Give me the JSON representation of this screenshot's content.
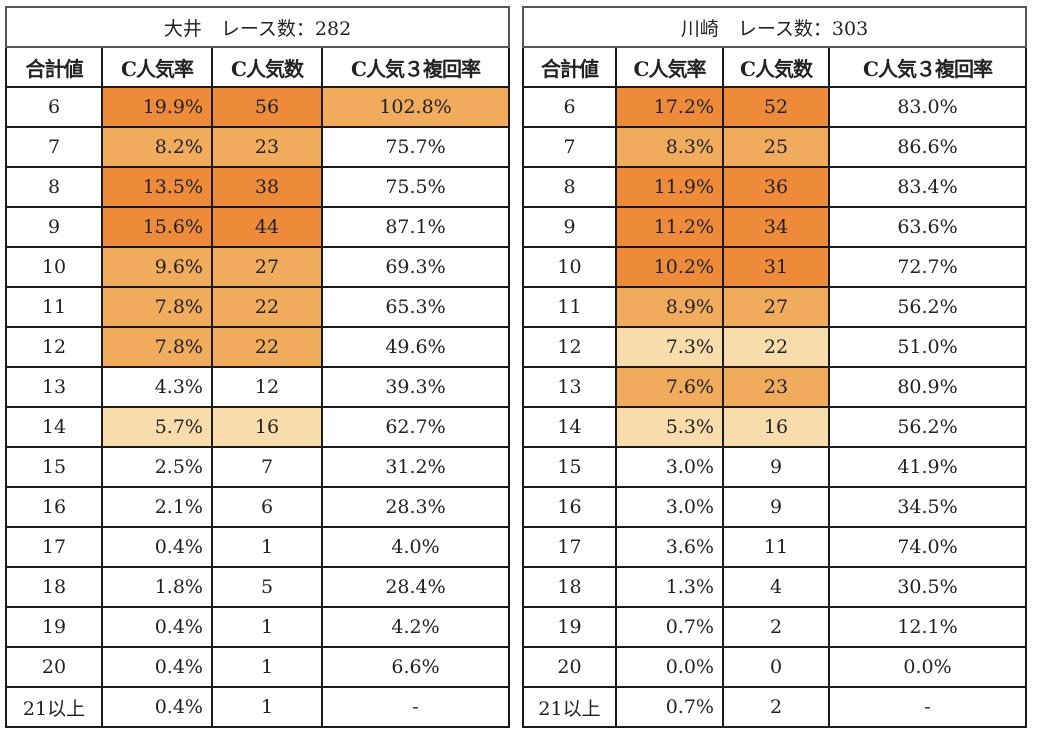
{
  "colors": {
    "dark": "#ED8B3A",
    "mid": "#F0AC5C",
    "light": "#F8DCAC"
  },
  "left": {
    "title": "大井　レース数：282",
    "headers": [
      "合計値",
      "C人気率",
      "C人気数",
      "C人気３複回率"
    ],
    "rows": [
      {
        "total": "6",
        "rate": "19.9%",
        "count": "56",
        "return": "102.8%",
        "shade": "dark",
        "ret_shade": "mid"
      },
      {
        "total": "7",
        "rate": "8.2%",
        "count": "23",
        "return": "75.7%",
        "shade": "mid",
        "ret_shade": ""
      },
      {
        "total": "8",
        "rate": "13.5%",
        "count": "38",
        "return": "75.5%",
        "shade": "dark",
        "ret_shade": ""
      },
      {
        "total": "9",
        "rate": "15.6%",
        "count": "44",
        "return": "87.1%",
        "shade": "dark",
        "ret_shade": ""
      },
      {
        "total": "10",
        "rate": "9.6%",
        "count": "27",
        "return": "69.3%",
        "shade": "mid",
        "ret_shade": ""
      },
      {
        "total": "11",
        "rate": "7.8%",
        "count": "22",
        "return": "65.3%",
        "shade": "mid",
        "ret_shade": ""
      },
      {
        "total": "12",
        "rate": "7.8%",
        "count": "22",
        "return": "49.6%",
        "shade": "mid",
        "ret_shade": ""
      },
      {
        "total": "13",
        "rate": "4.3%",
        "count": "12",
        "return": "39.3%",
        "shade": "",
        "ret_shade": ""
      },
      {
        "total": "14",
        "rate": "5.7%",
        "count": "16",
        "return": "62.7%",
        "shade": "light",
        "ret_shade": ""
      },
      {
        "total": "15",
        "rate": "2.5%",
        "count": "7",
        "return": "31.2%",
        "shade": "",
        "ret_shade": ""
      },
      {
        "total": "16",
        "rate": "2.1%",
        "count": "6",
        "return": "28.3%",
        "shade": "",
        "ret_shade": ""
      },
      {
        "total": "17",
        "rate": "0.4%",
        "count": "1",
        "return": "4.0%",
        "shade": "",
        "ret_shade": ""
      },
      {
        "total": "18",
        "rate": "1.8%",
        "count": "5",
        "return": "28.4%",
        "shade": "",
        "ret_shade": ""
      },
      {
        "total": "19",
        "rate": "0.4%",
        "count": "1",
        "return": "4.2%",
        "shade": "",
        "ret_shade": ""
      },
      {
        "total": "20",
        "rate": "0.4%",
        "count": "1",
        "return": "6.6%",
        "shade": "",
        "ret_shade": ""
      },
      {
        "total": "21以上",
        "rate": "0.4%",
        "count": "1",
        "return": "-",
        "shade": "",
        "ret_shade": ""
      }
    ]
  },
  "right": {
    "title": "川崎　レース数：303",
    "headers": [
      "合計値",
      "C人気率",
      "C人気数",
      "C人気３複回率"
    ],
    "rows": [
      {
        "total": "6",
        "rate": "17.2%",
        "count": "52",
        "return": "83.0%",
        "shade": "dark",
        "ret_shade": ""
      },
      {
        "total": "7",
        "rate": "8.3%",
        "count": "25",
        "return": "86.6%",
        "shade": "mid",
        "ret_shade": ""
      },
      {
        "total": "8",
        "rate": "11.9%",
        "count": "36",
        "return": "83.4%",
        "shade": "dark",
        "ret_shade": ""
      },
      {
        "total": "9",
        "rate": "11.2%",
        "count": "34",
        "return": "63.6%",
        "shade": "dark",
        "ret_shade": ""
      },
      {
        "total": "10",
        "rate": "10.2%",
        "count": "31",
        "return": "72.7%",
        "shade": "dark",
        "ret_shade": ""
      },
      {
        "total": "11",
        "rate": "8.9%",
        "count": "27",
        "return": "56.2%",
        "shade": "mid",
        "ret_shade": ""
      },
      {
        "total": "12",
        "rate": "7.3%",
        "count": "22",
        "return": "51.0%",
        "shade": "light",
        "ret_shade": ""
      },
      {
        "total": "13",
        "rate": "7.6%",
        "count": "23",
        "return": "80.9%",
        "shade": "mid",
        "ret_shade": ""
      },
      {
        "total": "14",
        "rate": "5.3%",
        "count": "16",
        "return": "56.2%",
        "shade": "light",
        "ret_shade": ""
      },
      {
        "total": "15",
        "rate": "3.0%",
        "count": "9",
        "return": "41.9%",
        "shade": "",
        "ret_shade": ""
      },
      {
        "total": "16",
        "rate": "3.0%",
        "count": "9",
        "return": "34.5%",
        "shade": "",
        "ret_shade": ""
      },
      {
        "total": "17",
        "rate": "3.6%",
        "count": "11",
        "return": "74.0%",
        "shade": "",
        "ret_shade": ""
      },
      {
        "total": "18",
        "rate": "1.3%",
        "count": "4",
        "return": "30.5%",
        "shade": "",
        "ret_shade": ""
      },
      {
        "total": "19",
        "rate": "0.7%",
        "count": "2",
        "return": "12.1%",
        "shade": "",
        "ret_shade": ""
      },
      {
        "total": "20",
        "rate": "0.0%",
        "count": "0",
        "return": "0.0%",
        "shade": "",
        "ret_shade": ""
      },
      {
        "total": "21以上",
        "rate": "0.7%",
        "count": "2",
        "return": "-",
        "shade": "",
        "ret_shade": ""
      }
    ]
  }
}
